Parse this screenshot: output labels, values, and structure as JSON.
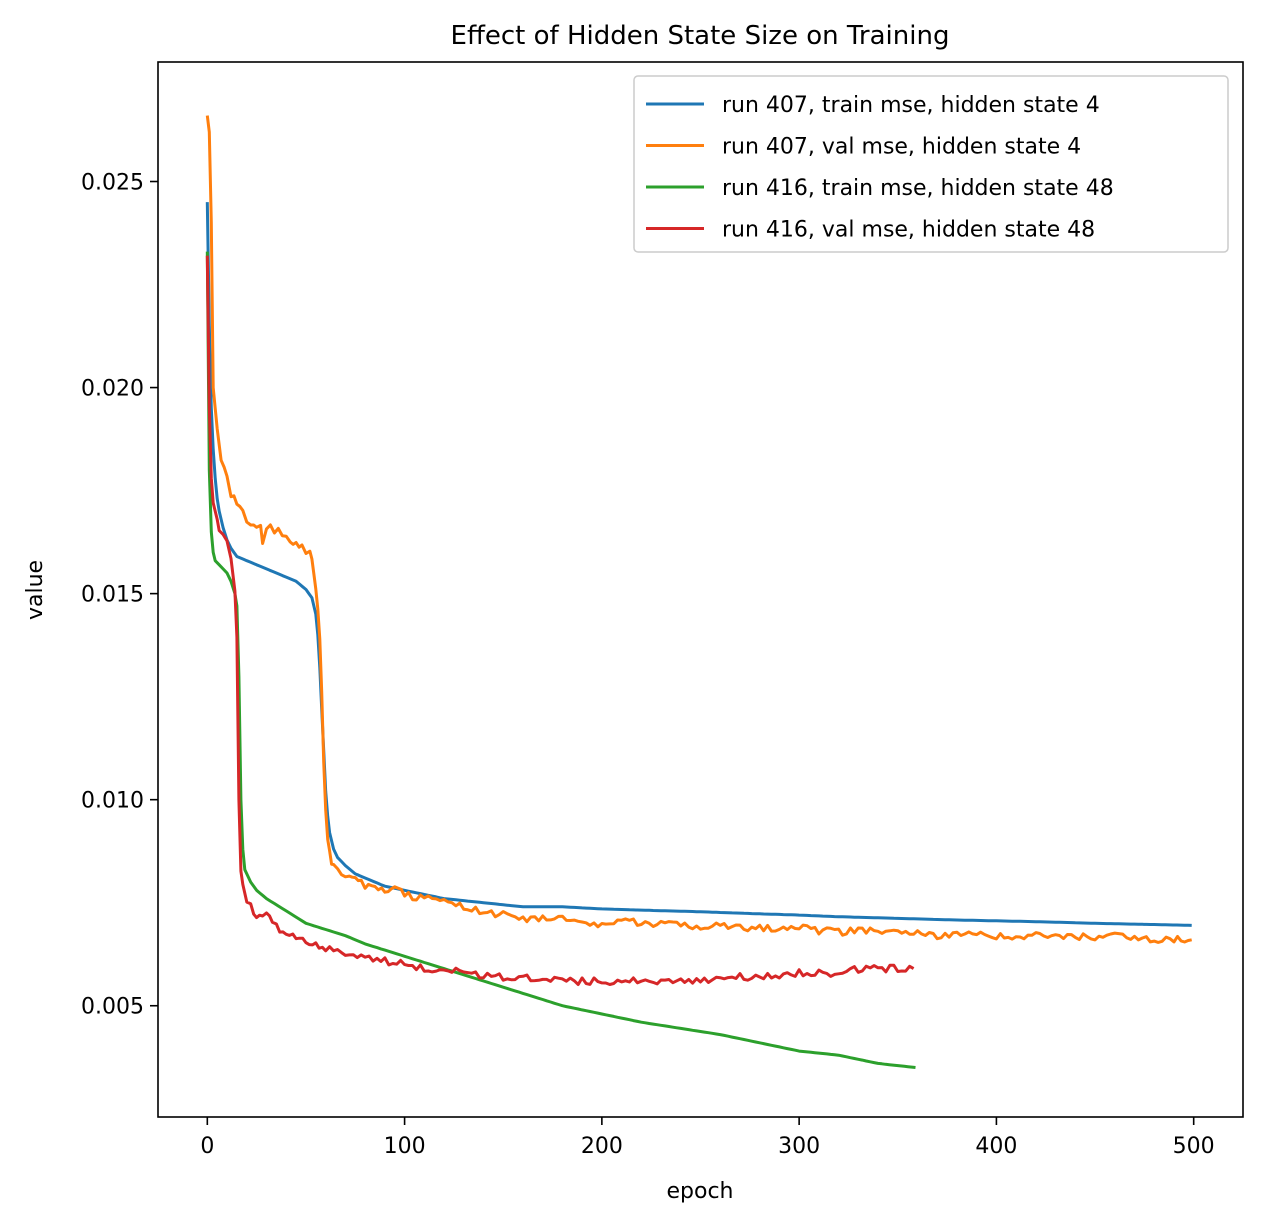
{
  "chart_data": {
    "type": "line",
    "title": "Effect of Hidden State Size on Training",
    "xlabel": "epoch",
    "ylabel": "value",
    "xlim": [
      -25,
      525
    ],
    "ylim": [
      0.0023,
      0.0279
    ],
    "xticks": [
      0,
      100,
      200,
      300,
      400,
      500
    ],
    "xtick_labels": [
      "0",
      "100",
      "200",
      "300",
      "400",
      "500"
    ],
    "yticks": [
      0.005,
      0.01,
      0.015,
      0.02,
      0.025
    ],
    "ytick_labels": [
      "0.005",
      "0.010",
      "0.015",
      "0.020",
      "0.025"
    ],
    "grid": false,
    "legend_position": "top-right",
    "series": [
      {
        "name": "run 407, train mse, hidden state 4",
        "color": "#1f77b4",
        "x": [
          0,
          1,
          2,
          3,
          4,
          5,
          6,
          8,
          10,
          12,
          15,
          20,
          25,
          30,
          35,
          40,
          45,
          50,
          53,
          55,
          56,
          57,
          58,
          59,
          60,
          61,
          62,
          63,
          64,
          66,
          68,
          70,
          75,
          80,
          90,
          100,
          120,
          140,
          160,
          180,
          200,
          220,
          250,
          280,
          300,
          320,
          350,
          380,
          400,
          420,
          450,
          480,
          499
        ],
        "y": [
          0.0245,
          0.0215,
          0.0195,
          0.0185,
          0.0178,
          0.0173,
          0.017,
          0.0166,
          0.0163,
          0.0161,
          0.0159,
          0.0158,
          0.0157,
          0.0156,
          0.0155,
          0.0154,
          0.0153,
          0.0151,
          0.0149,
          0.0145,
          0.014,
          0.0132,
          0.0122,
          0.0112,
          0.0102,
          0.0096,
          0.0092,
          0.009,
          0.0088,
          0.0086,
          0.0085,
          0.0084,
          0.0082,
          0.0081,
          0.0079,
          0.0078,
          0.0076,
          0.0075,
          0.0074,
          0.0074,
          0.00735,
          0.00732,
          0.00728,
          0.00723,
          0.0072,
          0.00716,
          0.00712,
          0.00708,
          0.00706,
          0.00704,
          0.007,
          0.00697,
          0.00695
        ]
      },
      {
        "name": "run 407, val mse, hidden state 4",
        "color": "#ff7f0e",
        "x": [
          0,
          1,
          2,
          3,
          5,
          7,
          10,
          12,
          15,
          18,
          20,
          22,
          25,
          27,
          28,
          30,
          32,
          34,
          36,
          38,
          40,
          42,
          45,
          48,
          50,
          52,
          53,
          54,
          55,
          56,
          57,
          58,
          59,
          60,
          61,
          62,
          63,
          64,
          66,
          68,
          70,
          72,
          75,
          78,
          80,
          85,
          90,
          95,
          100,
          110,
          120,
          130,
          140,
          150,
          160,
          170,
          180,
          190,
          200,
          210,
          220,
          230,
          240,
          250,
          260,
          270,
          280,
          290,
          300,
          310,
          320,
          330,
          340,
          350,
          360,
          370,
          380,
          390,
          400,
          410,
          420,
          430,
          440,
          450,
          460,
          470,
          480,
          490,
          499
        ],
        "y": [
          0.0266,
          0.0262,
          0.024,
          0.02,
          0.019,
          0.0182,
          0.0178,
          0.0174,
          0.0172,
          0.017,
          0.0168,
          0.0167,
          0.0166,
          0.0167,
          0.0163,
          0.0166,
          0.0167,
          0.0165,
          0.0166,
          0.0164,
          0.0164,
          0.0162,
          0.0163,
          0.0161,
          0.016,
          0.0161,
          0.0158,
          0.0155,
          0.0151,
          0.0147,
          0.0139,
          0.0127,
          0.011,
          0.0098,
          0.0091,
          0.0087,
          0.0085,
          0.0084,
          0.0083,
          0.0082,
          0.0082,
          0.0081,
          0.0081,
          0.008,
          0.0079,
          0.0079,
          0.0078,
          0.0078,
          0.0077,
          0.0076,
          0.0075,
          0.0074,
          0.0073,
          0.0072,
          0.0071,
          0.0071,
          0.0071,
          0.007,
          0.007,
          0.0071,
          0.007,
          0.007,
          0.007,
          0.0069,
          0.007,
          0.0069,
          0.0069,
          0.0069,
          0.0069,
          0.0068,
          0.0068,
          0.0068,
          0.0068,
          0.0068,
          0.0068,
          0.0067,
          0.0067,
          0.0068,
          0.0067,
          0.0067,
          0.0067,
          0.0067,
          0.0067,
          0.0066,
          0.0067,
          0.0066,
          0.0066,
          0.0066,
          0.0066
        ]
      },
      {
        "name": "run 416, train mse, hidden state 48",
        "color": "#2ca02c",
        "x": [
          0,
          1,
          2,
          3,
          4,
          6,
          8,
          10,
          12,
          14,
          15,
          16,
          17,
          18,
          19,
          20,
          22,
          25,
          30,
          40,
          50,
          60,
          70,
          80,
          100,
          120,
          140,
          160,
          180,
          200,
          220,
          240,
          260,
          280,
          300,
          320,
          340,
          359
        ],
        "y": [
          0.0233,
          0.018,
          0.0165,
          0.016,
          0.0158,
          0.0157,
          0.0156,
          0.0155,
          0.0153,
          0.015,
          0.0147,
          0.013,
          0.01,
          0.0088,
          0.0083,
          0.0082,
          0.008,
          0.0078,
          0.0076,
          0.0073,
          0.007,
          0.00685,
          0.0067,
          0.0065,
          0.0062,
          0.0059,
          0.0056,
          0.0053,
          0.005,
          0.0048,
          0.0046,
          0.00445,
          0.0043,
          0.0041,
          0.0039,
          0.0038,
          0.0036,
          0.0035
        ]
      },
      {
        "name": "run 416, val mse, hidden state 48",
        "color": "#d62728",
        "x": [
          0,
          1,
          2,
          3,
          4,
          5,
          6,
          8,
          10,
          12,
          14,
          15,
          16,
          17,
          18,
          19,
          20,
          22,
          25,
          28,
          30,
          33,
          35,
          40,
          45,
          50,
          55,
          60,
          70,
          80,
          90,
          100,
          110,
          120,
          130,
          140,
          150,
          160,
          170,
          180,
          190,
          200,
          210,
          220,
          230,
          240,
          250,
          260,
          270,
          280,
          290,
          300,
          310,
          320,
          330,
          340,
          350,
          358
        ],
        "y": [
          0.0232,
          0.0195,
          0.0178,
          0.0172,
          0.017,
          0.0168,
          0.0166,
          0.0164,
          0.0162,
          0.0159,
          0.015,
          0.014,
          0.01,
          0.0083,
          0.0079,
          0.0077,
          0.0075,
          0.0074,
          0.0072,
          0.0071,
          0.0072,
          0.007,
          0.0069,
          0.0068,
          0.0067,
          0.0066,
          0.0065,
          0.0064,
          0.0063,
          0.0062,
          0.0061,
          0.006,
          0.0059,
          0.0059,
          0.0058,
          0.0057,
          0.0057,
          0.0057,
          0.0056,
          0.0056,
          0.0056,
          0.0056,
          0.0056,
          0.0056,
          0.0056,
          0.0056,
          0.0056,
          0.0057,
          0.0057,
          0.0057,
          0.0057,
          0.0058,
          0.0058,
          0.0058,
          0.0059,
          0.0059,
          0.0059,
          0.0059
        ]
      }
    ]
  }
}
